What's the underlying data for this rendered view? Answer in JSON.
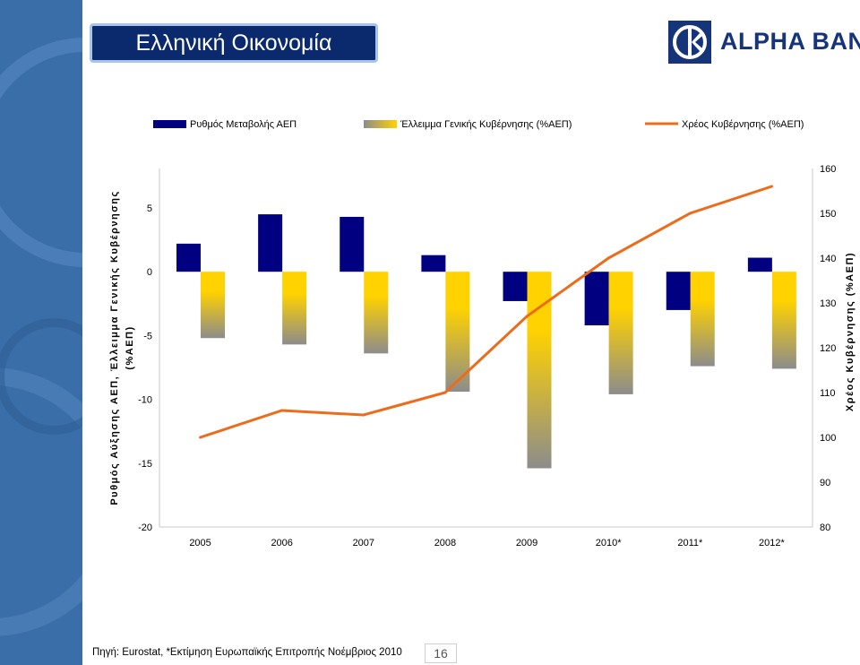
{
  "page": {
    "title": "Ελληνική Οικονομία",
    "logo_text": "ALPHA BANK",
    "source_note": "Πηγή: Eurostat, *Εκτίμηση Ευρωπαϊκής Επιτροπής Νοέμβριος 2010",
    "page_number": "16"
  },
  "colors": {
    "side_panel": "#3a6ea8",
    "title_bg": "#0b2a6e",
    "growth_bar": "#000080",
    "deficit_top": "#ffd200",
    "deficit_bottom": "#8c8c8c",
    "debt_line": "#ec6c1c",
    "logo": "#16347a"
  },
  "chart_data": {
    "type": "bar+line",
    "categories": [
      "2005",
      "2006",
      "2007",
      "2008",
      "2009",
      "2010*",
      "2011*",
      "2012*"
    ],
    "series": [
      {
        "name": "Ρυθμός  Μεταβολής ΑΕΠ",
        "type": "bar",
        "axis": "left",
        "values": [
          2.2,
          4.5,
          4.3,
          1.3,
          -2.3,
          -4.2,
          -3.0,
          1.1
        ]
      },
      {
        "name": "Έλλειμμα Γενικής Κυβέρνησης (%ΑΕΠ)",
        "type": "bar",
        "axis": "left",
        "values": [
          -5.2,
          -5.7,
          -6.4,
          -9.4,
          -15.4,
          -9.6,
          -7.4,
          -7.6
        ]
      },
      {
        "name": "Χρέος Κυβέρνησης (%ΑΕΠ)",
        "type": "line",
        "axis": "right",
        "values": [
          100,
          106,
          105,
          110,
          127,
          140,
          150,
          156
        ]
      }
    ],
    "left_axis": {
      "label": "Ρυθμός Αύξησης ΑΕΠ, Έλλειμμα Γενικής Κυβέρνησης (%ΑΕΠ)",
      "min": -20,
      "max": 5,
      "ticks": [
        5,
        0,
        -5,
        -10,
        -15,
        -20
      ]
    },
    "right_axis": {
      "label": "Χρέος Κυβέρνησης (%ΑΕΠ)",
      "min": 80,
      "max": 160,
      "ticks": [
        160,
        150,
        140,
        130,
        120,
        110,
        100,
        90,
        80
      ]
    },
    "legend_position": "top"
  }
}
